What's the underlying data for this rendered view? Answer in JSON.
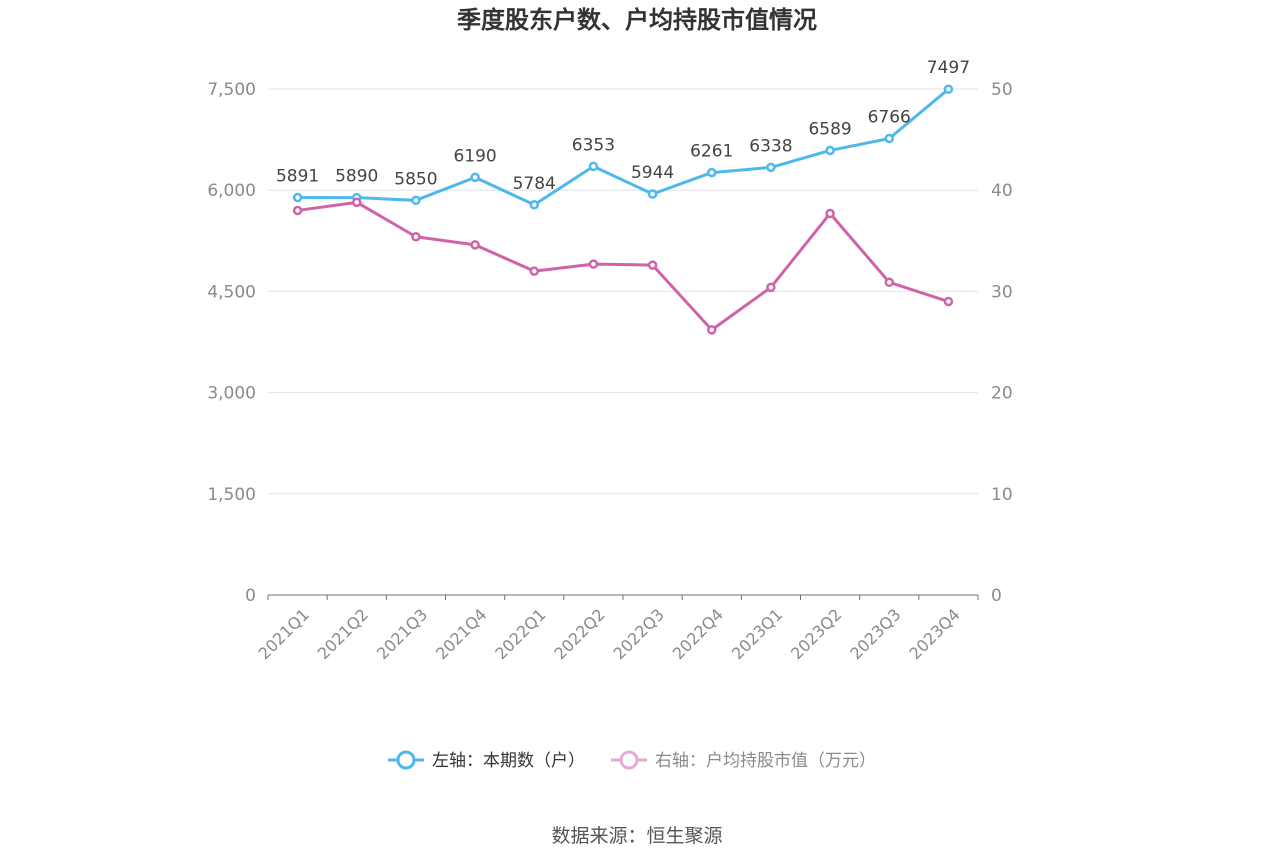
{
  "chart_data": {
    "type": "line",
    "title": "季度股东户数、户均持股市值情况",
    "categories": [
      "2021Q1",
      "2021Q2",
      "2021Q3",
      "2021Q4",
      "2022Q1",
      "2022Q2",
      "2022Q3",
      "2022Q4",
      "2023Q1",
      "2023Q2",
      "2023Q3",
      "2023Q4"
    ],
    "left_axis": {
      "ticks": [
        "0",
        "1,500",
        "3,000",
        "4,500",
        "6,000",
        "7,500"
      ],
      "tick_values": [
        0,
        1500,
        3000,
        4500,
        6000,
        7500
      ],
      "ylim": [
        0,
        7500
      ]
    },
    "right_axis": {
      "ticks": [
        "0",
        "10",
        "20",
        "30",
        "40",
        "50"
      ],
      "tick_values": [
        0,
        10,
        20,
        30,
        40,
        50
      ],
      "ylim": [
        0,
        50
      ]
    },
    "series": [
      {
        "name": "左轴：本期数（户）",
        "axis": "left",
        "color": "#4db8ec",
        "values": [
          5891,
          5890,
          5850,
          6190,
          5784,
          6353,
          5944,
          6261,
          6338,
          6589,
          6766,
          7497
        ],
        "labels": [
          "5891",
          "5890",
          "5850",
          "6190",
          "5784",
          "6353",
          "5944",
          "6261",
          "6338",
          "6589",
          "6766",
          "7497"
        ]
      },
      {
        "name": "右轴：户均持股市值（万元）",
        "axis": "right",
        "color": "#d063a8",
        "values": [
          38.0,
          38.8,
          35.4,
          34.6,
          32.0,
          32.7,
          32.6,
          26.2,
          30.4,
          37.7,
          30.9,
          29.0
        ]
      }
    ],
    "legend_position": "bottom",
    "grid": true,
    "legend_inactive_color": "#e8a9d4"
  },
  "source": "数据来源：恒生聚源"
}
